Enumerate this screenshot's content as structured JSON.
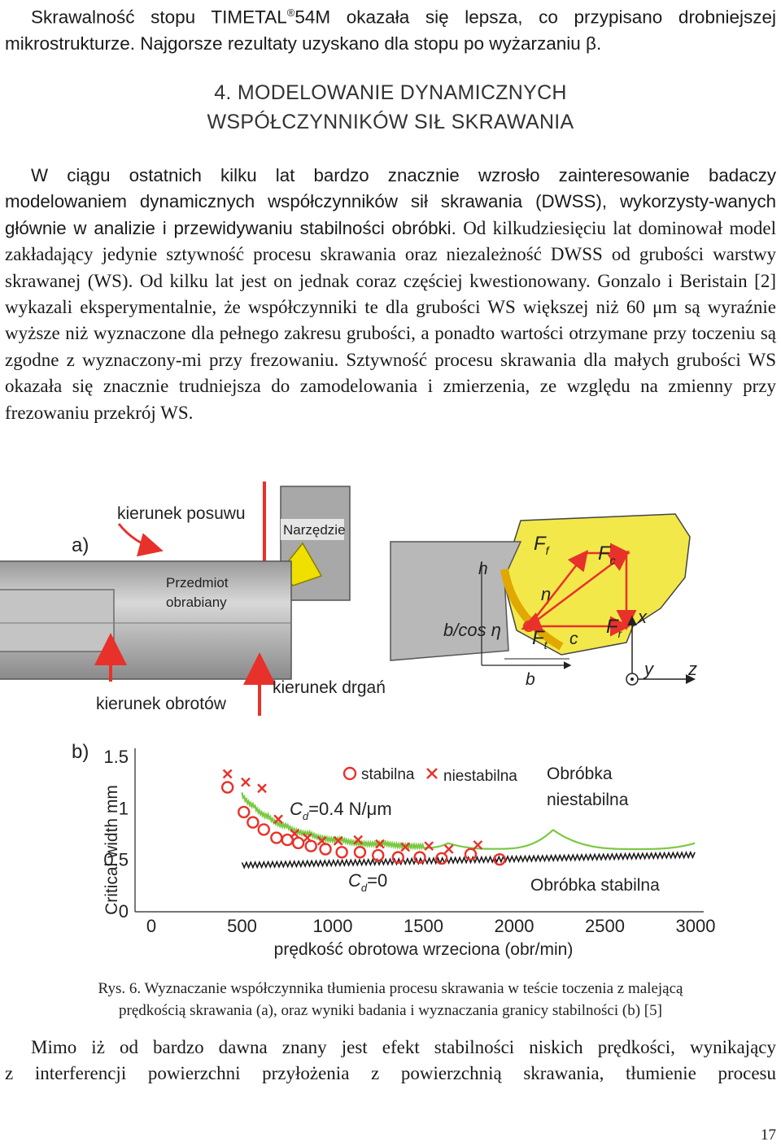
{
  "top_paragraph": {
    "line1_before_sup": "Skrawalność stopu TIMETAL",
    "sup": "®",
    "line1_after_sup": "54M okazała się lepsza, co przypisano drobniejszej",
    "line2": "mikrostrukturze. Najgorsze rezultaty uzyskano dla stopu po wyżarzaniu β."
  },
  "section_heading": {
    "line1": "4. MODELOWANIE DYNAMICZNYCH",
    "line2": "WSPÓŁCZYNNIKÓW SIŁ SKRAWANIA"
  },
  "body_paragraph": {
    "part_sans": "W ciągu ostatnich kilku lat bardzo znacznie wzrosło zainteresowanie badaczy modelowaniem dynamicznych współczynników sił skrawania (DWSS), wykorzysty-wanych głównie w analizie i przewidywaniu stabilności obróbki.",
    "part_serif": " Od kilkudziesięciu lat dominował model zakładający jedynie sztywność procesu skrawania oraz niezależność DWSS od grubości warstwy skrawanej (WS). Od kilku lat jest on jednak coraz częściej kwestionowany. Gonzalo i Beristain [2] wykazali eksperymentalnie, że współczynniki te dla grubości WS większej niż 60 μm są wyraźnie wyższe niż wyznaczone dla pełnego zakresu grubości, a ponadto wartości otrzymane przy toczeniu są zgodne z wyznaczony-mi przy frezowaniu. Sztywność procesu skrawania dla małych grubości WS okazała się znacznie trudniejsza do zamodelowania i zmierzenia, ze względu na zmienny przy frezowaniu przekrój WS."
  },
  "figure_a": {
    "panel_label": "a)",
    "feed_direction": "kierunek posuwu",
    "tool": "Narzędzie",
    "workpiece_line1": "Przedmiot",
    "workpiece_line2": "obrabiany",
    "rotation_direction": "kierunek obrotów",
    "vibration_direction": "kierunek drgań",
    "symbols": {
      "h": "h",
      "b_over_cos": "b/cos η",
      "eta": "η",
      "Ff": "F",
      "Ff_sub": "f",
      "Fc": "F",
      "Fc_sub": "c",
      "Fr": "F",
      "Fr_sub": "r",
      "Ft": "F",
      "Ft_sub": "t",
      "c": "c",
      "b": "b",
      "x": "x",
      "y": "y",
      "z": "z"
    },
    "colors": {
      "tool": "#f0e000",
      "workpiece": "#b8b8b8",
      "chip_zone": "#f2e84a",
      "arrows": "#e8312a"
    }
  },
  "figure_b": {
    "panel_label": "b)",
    "legend_stable": "stabilna",
    "legend_unstable": "niestabilna",
    "annotation_unstable_line1": "Obróbka",
    "annotation_unstable_line2": "niestabilna",
    "annotation_stable": "Obróbka stabilna",
    "cd_label_green": "C",
    "cd_sub": "d",
    "cd_value_green": "=0.4 N/μm",
    "cd_value_black": "=0",
    "colors": {
      "markers": "#e8312a",
      "damped_curve": "#7ac943",
      "undamped_curve": "#1a1a1a"
    }
  },
  "chart_data": {
    "type": "scatter",
    "title": "",
    "xlabel": "prędkość obrotowa wrzeciona (obr/min)",
    "ylabel": "Critical width mm",
    "xlim": [
      0,
      3000
    ],
    "ylim": [
      0,
      1.5
    ],
    "x_ticks": [
      "0",
      "500",
      "1000",
      "1500",
      "2000",
      "2500",
      "3000"
    ],
    "y_ticks": [
      "0",
      "0.5",
      "1",
      "1.5"
    ],
    "legend_position": "top",
    "series": [
      {
        "name": "stabilna",
        "marker": "circle",
        "points": [
          [
            420,
            1.2
          ],
          [
            510,
            0.96
          ],
          [
            560,
            0.86
          ],
          [
            620,
            0.79
          ],
          [
            690,
            0.71
          ],
          [
            750,
            0.69
          ],
          [
            810,
            0.66
          ],
          [
            880,
            0.63
          ],
          [
            960,
            0.6
          ],
          [
            1050,
            0.57
          ],
          [
            1150,
            0.57
          ],
          [
            1250,
            0.54
          ],
          [
            1360,
            0.52
          ],
          [
            1480,
            0.52
          ],
          [
            1600,
            0.51
          ],
          [
            1760,
            0.55
          ],
          [
            1920,
            0.5
          ]
        ]
      },
      {
        "name": "niestabilna",
        "marker": "x",
        "points": [
          [
            420,
            1.33
          ],
          [
            520,
            1.25
          ],
          [
            610,
            1.19
          ],
          [
            700,
            0.89
          ],
          [
            790,
            0.75
          ],
          [
            860,
            0.71
          ],
          [
            940,
            0.68
          ],
          [
            1030,
            0.68
          ],
          [
            1140,
            0.69
          ],
          [
            1260,
            0.65
          ],
          [
            1400,
            0.62
          ],
          [
            1530,
            0.63
          ],
          [
            1640,
            0.6
          ],
          [
            1800,
            0.64
          ]
        ]
      }
    ],
    "curves": [
      {
        "label": "C_d=0.4 N/μm",
        "color": "green",
        "description_points": [
          [
            500,
            1.05
          ],
          [
            700,
            0.8
          ],
          [
            1000,
            0.66
          ],
          [
            1300,
            0.62
          ],
          [
            1600,
            0.6
          ],
          [
            2000,
            0.6
          ],
          [
            2500,
            0.6
          ],
          [
            3000,
            0.6
          ]
        ],
        "lobe_peaks": [
          [
            1780,
            0.74
          ],
          [
            2000,
            0.78
          ],
          [
            2270,
            0.83
          ],
          [
            2600,
            0.92
          ],
          [
            3000,
            1.0
          ]
        ]
      },
      {
        "label": "C_d=0",
        "color": "black",
        "description_points": [
          [
            500,
            0.42
          ],
          [
            1000,
            0.44
          ],
          [
            1500,
            0.46
          ],
          [
            2000,
            0.48
          ],
          [
            2500,
            0.5
          ],
          [
            3000,
            0.52
          ]
        ]
      }
    ]
  },
  "caption": {
    "line1": "Rys. 6. Wyznaczanie współczynnika tłumienia procesu skrawania w teście toczenia z malejącą",
    "line2": "prędkością skrawania (a), oraz wyniki badania i wyznaczania granicy stabilności (b) [5]"
  },
  "bottom_paragraph": {
    "line1": "Mimo iż od bardzo dawna znany jest efekt stabilności niskich prędkości, wynikający",
    "line2": "z interferencji powierzchni przyłożenia z powierzchnią skrawania, tłumienie procesu"
  },
  "page_number": "17"
}
